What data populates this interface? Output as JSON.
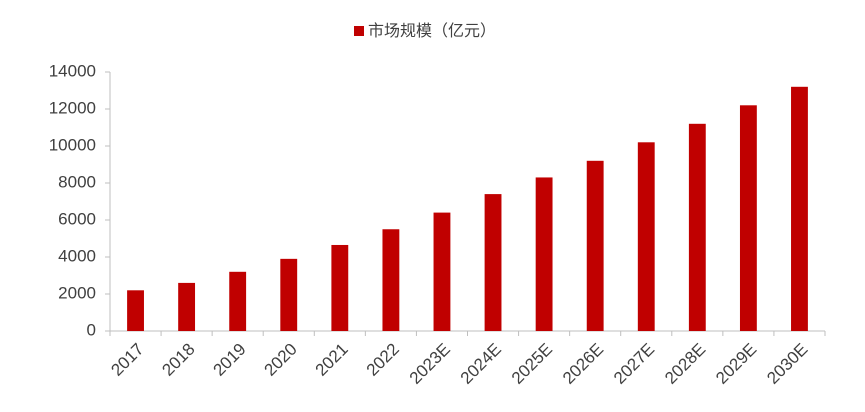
{
  "chart_data": {
    "type": "bar",
    "categories": [
      "2017",
      "2018",
      "2019",
      "2020",
      "2021",
      "2022",
      "2023E",
      "2024E",
      "2025E",
      "2026E",
      "2027E",
      "2028E",
      "2029E",
      "2030E"
    ],
    "series": [
      {
        "name": "市场规模（亿元）",
        "color": "#c00000",
        "values": [
          2200,
          2600,
          3200,
          3900,
          4650,
          5500,
          6400,
          7400,
          8300,
          9200,
          10200,
          11200,
          12200,
          13200
        ]
      }
    ],
    "ylim": [
      0,
      14000
    ],
    "yticks": [
      0,
      2000,
      4000,
      6000,
      8000,
      10000,
      12000,
      14000
    ],
    "grid": false,
    "legend": "top"
  }
}
